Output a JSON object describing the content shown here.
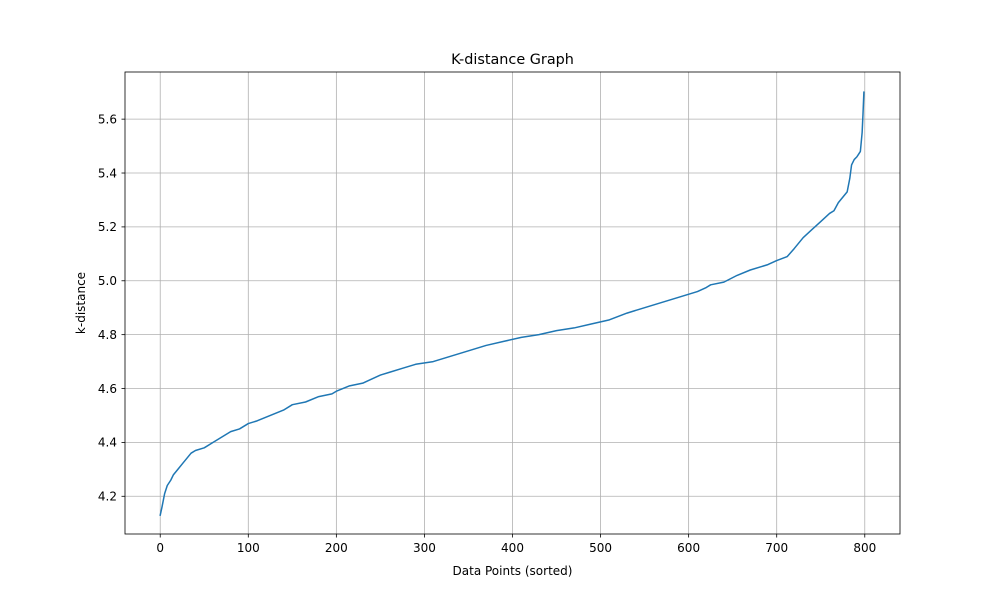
{
  "chart_data": {
    "type": "line",
    "title": "K-distance Graph",
    "xlabel": "Data Points (sorted)",
    "ylabel": "k-distance",
    "xlim": [
      -40,
      840
    ],
    "ylim": [
      4.06,
      5.775
    ],
    "x_ticks": [
      0,
      100,
      200,
      300,
      400,
      500,
      600,
      700,
      800
    ],
    "y_ticks": [
      4.2,
      4.4,
      4.6,
      4.8,
      5.0,
      5.2,
      5.4,
      5.6
    ],
    "grid": true,
    "line_color": "#1f77b4",
    "series": [
      {
        "x": [
          0,
          2,
          5,
          8,
          12,
          15,
          20,
          25,
          30,
          35,
          40,
          50,
          60,
          70,
          80,
          90,
          100,
          110,
          125,
          140,
          150,
          165,
          180,
          195,
          200,
          215,
          230,
          250,
          260,
          275,
          290,
          310,
          330,
          350,
          370,
          390,
          410,
          430,
          450,
          470,
          490,
          510,
          530,
          550,
          570,
          590,
          610,
          620,
          625,
          640,
          655,
          670,
          690,
          700,
          712,
          720,
          730,
          740,
          750,
          760,
          765,
          770,
          780,
          783,
          785,
          788,
          791,
          793,
          795,
          797,
          798,
          799
        ],
        "y": [
          4.13,
          4.16,
          4.21,
          4.24,
          4.26,
          4.28,
          4.3,
          4.32,
          4.34,
          4.36,
          4.37,
          4.38,
          4.4,
          4.42,
          4.44,
          4.45,
          4.47,
          4.48,
          4.5,
          4.52,
          4.54,
          4.55,
          4.57,
          4.58,
          4.59,
          4.61,
          4.62,
          4.65,
          4.66,
          4.675,
          4.69,
          4.7,
          4.72,
          4.74,
          4.76,
          4.775,
          4.79,
          4.8,
          4.815,
          4.825,
          4.84,
          4.855,
          4.88,
          4.9,
          4.92,
          4.94,
          4.96,
          4.975,
          4.985,
          4.995,
          5.02,
          5.04,
          5.06,
          5.075,
          5.09,
          5.12,
          5.16,
          5.19,
          5.22,
          5.25,
          5.26,
          5.29,
          5.33,
          5.38,
          5.43,
          5.45,
          5.46,
          5.47,
          5.48,
          5.55,
          5.62,
          5.7
        ]
      }
    ]
  }
}
